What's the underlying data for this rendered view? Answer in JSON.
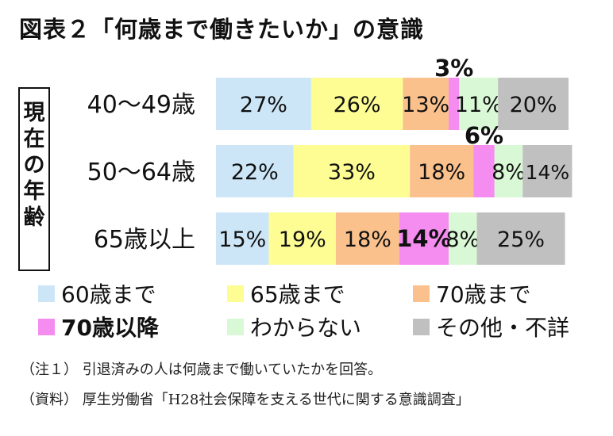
{
  "title": "図表２「何歳まで働きたいか」の意識",
  "side_label": [
    "現",
    "在",
    "の",
    "年",
    "齢"
  ],
  "notes": [
    "（注１） 引退済みの人は何歳まで働いていたかを回答。",
    "（資料） 厚生労働省「H28社会保障を支える世代に関する意識調査」"
  ],
  "chart_data": {
    "type": "bar",
    "orientation": "horizontal",
    "stacked": "100%",
    "categories": [
      "40～49歳",
      "50～64歳",
      "65歳以上"
    ],
    "series": [
      {
        "name": "60歳まで",
        "color": "#cce6f7",
        "values": [
          27,
          22,
          15
        ],
        "labels": [
          "27%",
          "22%",
          "15%"
        ]
      },
      {
        "name": "65歳まで",
        "color": "#fdfd94",
        "values": [
          26,
          33,
          19
        ],
        "labels": [
          "26%",
          "33%",
          "19%"
        ]
      },
      {
        "name": "70歳まで",
        "color": "#fbc18d",
        "values": [
          13,
          18,
          18
        ],
        "labels": [
          "13%",
          "18%",
          "18%"
        ]
      },
      {
        "name": "70歳以降",
        "color": "#f58cf0",
        "emphasis": true,
        "values": [
          3,
          6,
          14
        ],
        "labels": [
          "3%",
          "6%",
          "14%"
        ]
      },
      {
        "name": "わからない",
        "color": "#d9f8d5",
        "values": [
          11,
          8,
          8
        ],
        "labels": [
          "11%",
          "8%",
          "8%"
        ]
      },
      {
        "name": "その他・不詳",
        "color": "#c0c0c0",
        "values": [
          20,
          14,
          25
        ],
        "labels": [
          "20%",
          "14%",
          "25%"
        ]
      }
    ],
    "legend_position": "bottom"
  }
}
